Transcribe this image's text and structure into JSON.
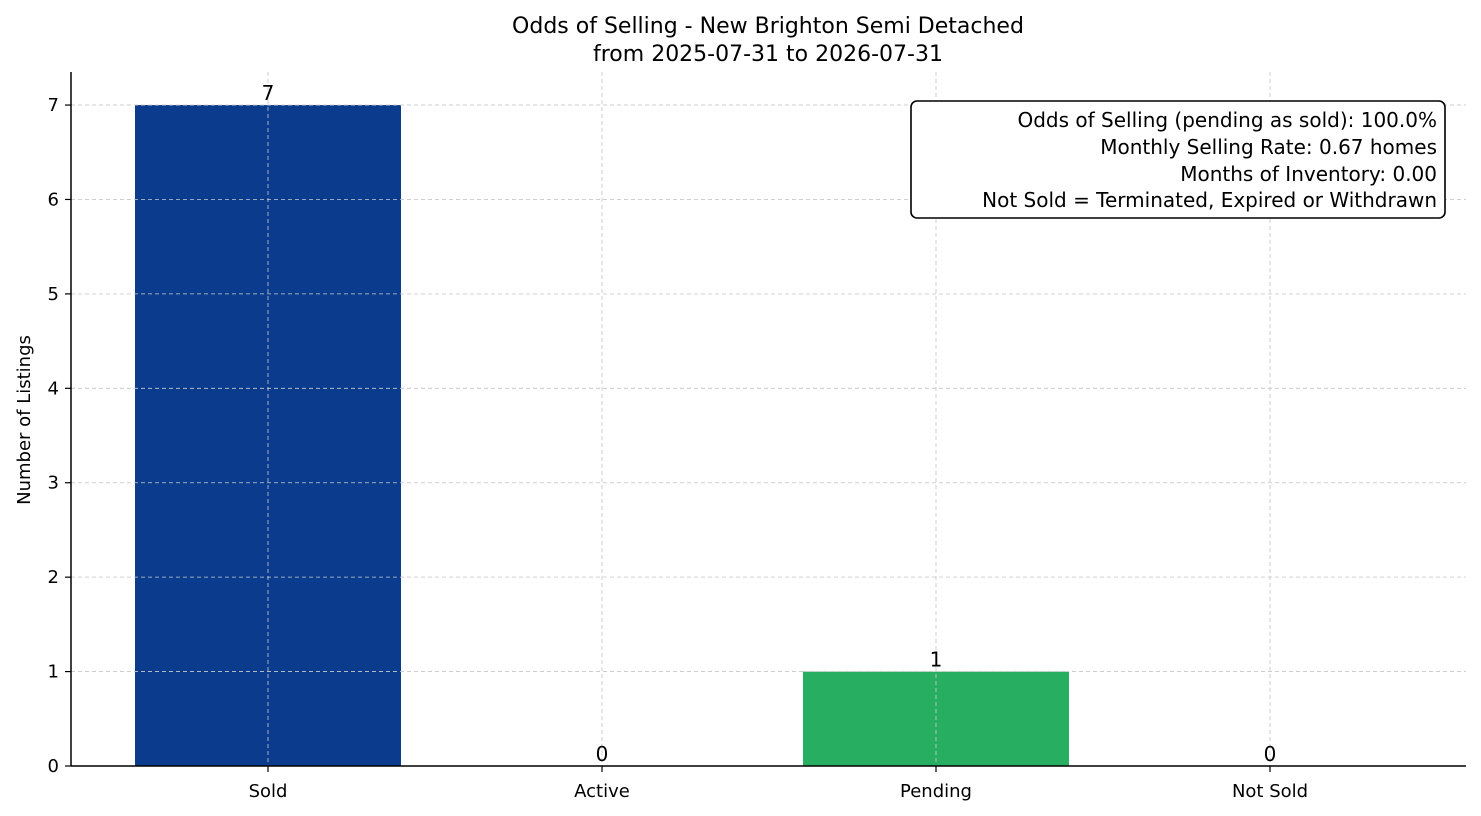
{
  "chart_data": {
    "type": "bar",
    "title": "Odds of Selling - New Brighton Semi Detached",
    "subtitle": "from 2025-07-31 to 2026-07-31",
    "xlabel": "",
    "ylabel": "Number of Listings",
    "categories": [
      "Sold",
      "Active",
      "Pending",
      "Not Sold"
    ],
    "values": [
      7,
      0,
      1,
      0
    ],
    "data_labels": [
      "7",
      "0",
      "1",
      "0"
    ],
    "colors": [
      "#0b3b8c",
      "#2166ac",
      "#27ae60",
      "#c0392b"
    ],
    "ylim": [
      0,
      7.35
    ],
    "yticks": [
      0,
      1,
      2,
      3,
      4,
      5,
      6,
      7
    ],
    "grid": true,
    "stats_box": {
      "placement": "top-right",
      "lines": [
        "Odds of Selling (pending as sold): 100.0%",
        "Monthly Selling Rate: 0.67 homes",
        "Months of Inventory: 0.00",
        "Not Sold = Terminated, Expired or Withdrawn"
      ]
    }
  }
}
